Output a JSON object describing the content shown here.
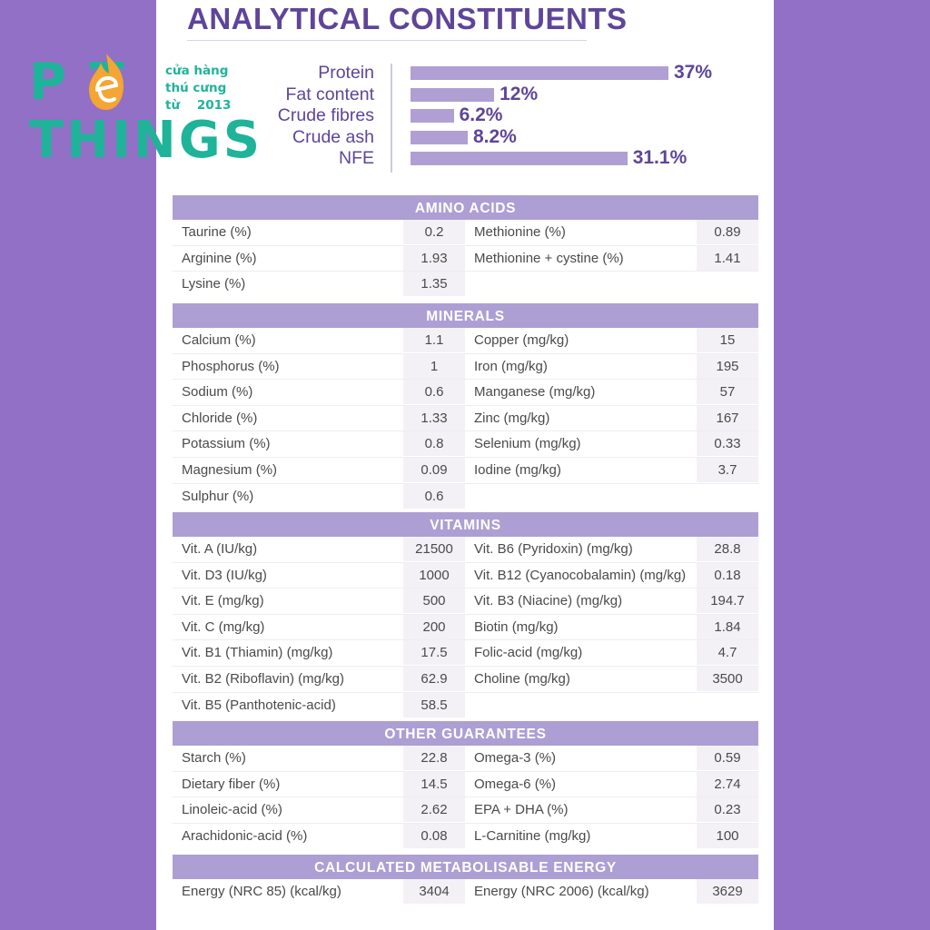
{
  "title": "ANALYTICAL CONSTITUENTS",
  "logo": {
    "word1": "P T",
    "word2": "THINGS",
    "sub": [
      "cửa hàng",
      "thú cưng",
      "từ    2013"
    ]
  },
  "chart_data": {
    "type": "bar",
    "orientation": "horizontal",
    "categories": [
      "Protein",
      "Fat content",
      "Crude fibres",
      "Crude ash",
      "NFE"
    ],
    "values": [
      37,
      12,
      6.2,
      8.2,
      31.1
    ],
    "value_labels": [
      "37%",
      "12%",
      "6.2%",
      "8.2%",
      "31.1%"
    ],
    "unit": "%",
    "xlim": [
      0,
      37
    ],
    "colors": {
      "bar": "#b09fd3",
      "label": "#5e4599"
    }
  },
  "sections": [
    {
      "title": "AMINO ACIDS",
      "rows": [
        [
          "Taurine (%)",
          "0.2",
          "Methionine (%)",
          "0.89"
        ],
        [
          "Arginine (%)",
          "1.93",
          "Methionine + cystine (%)",
          "1.41"
        ],
        [
          "Lysine (%)",
          "1.35",
          "",
          ""
        ]
      ]
    },
    {
      "title": "MINERALS",
      "rows": [
        [
          "Calcium (%)",
          "1.1",
          "Copper (mg/kg)",
          "15"
        ],
        [
          "Phosphorus (%)",
          "1",
          "Iron (mg/kg)",
          "195"
        ],
        [
          "Sodium (%)",
          "0.6",
          "Manganese (mg/kg)",
          "57"
        ],
        [
          "Chloride (%)",
          "1.33",
          "Zinc (mg/kg)",
          "167"
        ],
        [
          "Potassium (%)",
          "0.8",
          "Selenium (mg/kg)",
          "0.33"
        ],
        [
          "Magnesium (%)",
          "0.09",
          "Iodine (mg/kg)",
          "3.7"
        ],
        [
          "Sulphur (%)",
          "0.6",
          "",
          ""
        ]
      ]
    },
    {
      "title": "VITAMINS",
      "rows": [
        [
          "Vit. A (IU/kg)",
          "21500",
          "Vit. B6 (Pyridoxin) (mg/kg)",
          "28.8"
        ],
        [
          "Vit. D3 (IU/kg)",
          "1000",
          "Vit. B12 (Cyanocobalamin) (mg/kg)",
          "0.18"
        ],
        [
          "Vit. E (mg/kg)",
          "500",
          "Vit. B3 (Niacine) (mg/kg)",
          "194.7"
        ],
        [
          "Vit. C (mg/kg)",
          "200",
          "Biotin (mg/kg)",
          "1.84"
        ],
        [
          "Vit. B1 (Thiamin) (mg/kg)",
          "17.5",
          "Folic-acid (mg/kg)",
          "4.7"
        ],
        [
          "Vit. B2 (Riboflavin) (mg/kg)",
          "62.9",
          "Choline (mg/kg)",
          "3500"
        ],
        [
          "Vit. B5 (Panthotenic-acid)",
          "58.5",
          "",
          ""
        ]
      ]
    },
    {
      "title": "OTHER GUARANTEES",
      "rows": [
        [
          "Starch (%)",
          "22.8",
          "Omega-3 (%)",
          "0.59"
        ],
        [
          "Dietary fiber (%)",
          "14.5",
          "Omega-6 (%)",
          "2.74"
        ],
        [
          "Linoleic-acid (%)",
          "2.62",
          "EPA + DHA (%)",
          "0.23"
        ],
        [
          "Arachidonic-acid (%)",
          "0.08",
          "L-Carnitine (mg/kg)",
          "100"
        ]
      ]
    },
    {
      "title": "CALCULATED METABOLISABLE ENERGY",
      "rows": [
        [
          "Energy (NRC 85) (kcal/kg)",
          "3404",
          "Energy (NRC 2006) (kcal/kg)",
          "3629"
        ]
      ]
    }
  ]
}
